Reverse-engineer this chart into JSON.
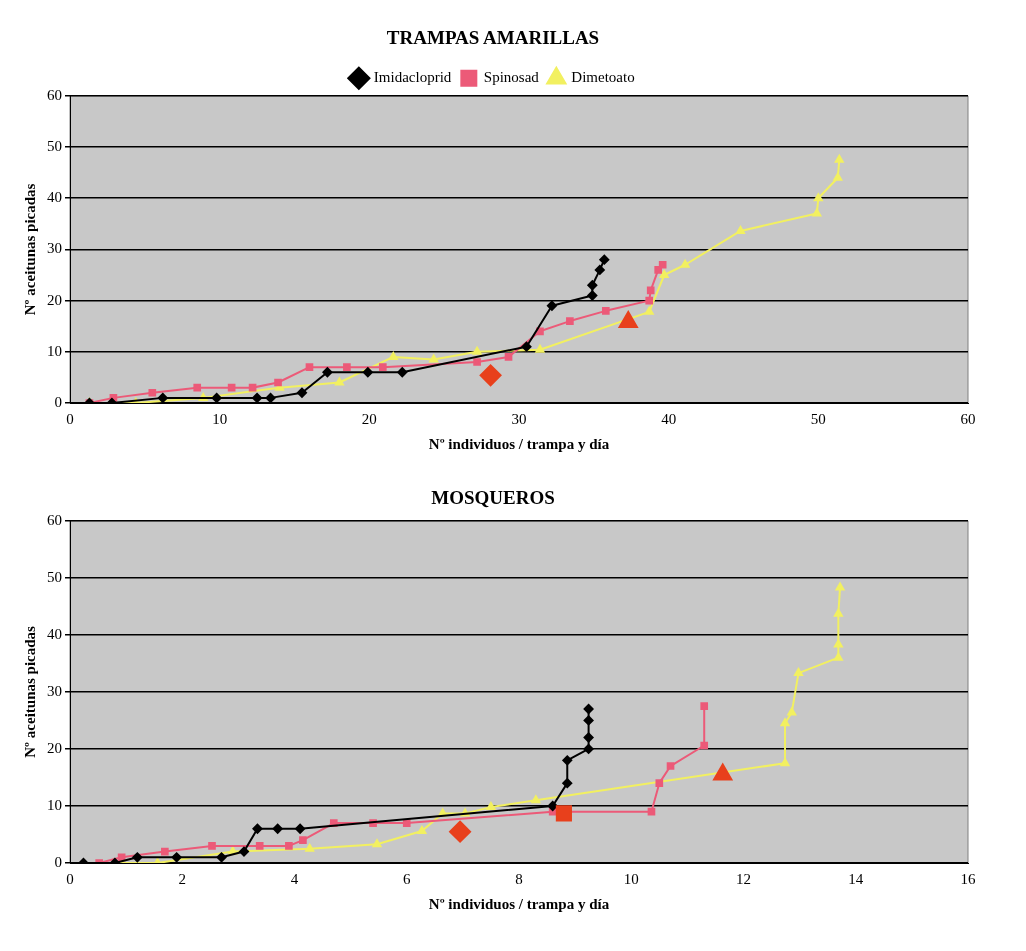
{
  "chart_data": [
    {
      "type": "line",
      "title": "TRAMPAS AMARILLAS",
      "xlabel": "Nº individuos / trampa y día",
      "ylabel": "Nº aceitunas picadas",
      "xlim": [
        0,
        60
      ],
      "xticks": [
        0,
        10,
        20,
        30,
        40,
        50,
        60
      ],
      "ylim": [
        0,
        60
      ],
      "yticks": [
        0,
        10,
        20,
        30,
        40,
        50,
        60
      ],
      "grid": "y",
      "legend": "top",
      "series": [
        {
          "name": "Imidacloprid",
          "color": "#000000",
          "marker": "diamond",
          "x": [
            1.3,
            2.8,
            6.2,
            9.8,
            12.5,
            13.4,
            15.5,
            17.2,
            19.9,
            22.2,
            30.5,
            32.2,
            34.9,
            34.9,
            35.4,
            35.7
          ],
          "values": [
            0,
            0,
            1,
            1,
            1,
            1,
            2,
            6,
            6,
            6,
            11,
            19,
            21,
            23,
            26,
            28
          ]
        },
        {
          "name": "Spinosad",
          "color": "#ec5a78",
          "marker": "square",
          "x": [
            1.3,
            2.9,
            5.5,
            8.5,
            10.8,
            12.2,
            13.9,
            16,
            18.5,
            20.9,
            27.2,
            29.3,
            31.4,
            33.4,
            35.8,
            38.7,
            38.8,
            39.3,
            39.6
          ],
          "values": [
            0,
            1,
            2,
            3,
            3,
            3,
            4,
            7,
            7,
            7,
            8,
            9,
            14,
            16,
            18,
            20,
            22,
            26,
            27
          ]
        },
        {
          "name": "Dimetoato",
          "color": "#f2f060",
          "marker": "triangle",
          "x": [
            1.3,
            4.4,
            8.9,
            14,
            18,
            21.6,
            24.3,
            27.2,
            31.4,
            38.7,
            39.7,
            41.1,
            44.8,
            49.9,
            50,
            51.3,
            51.4
          ],
          "values": [
            0,
            0,
            1,
            3,
            4,
            9,
            8.5,
            10,
            10.4,
            17.8,
            25,
            27,
            33.6,
            37,
            40,
            44,
            47.5
          ]
        },
        {
          "type": "scatter",
          "color": "#e8401c",
          "marker": "diamond",
          "x": [
            28.1
          ],
          "values": [
            5.4
          ]
        },
        {
          "type": "scatter",
          "color": "#e8401c",
          "marker": "triangle",
          "x": [
            37.3
          ],
          "values": [
            15.8
          ]
        }
      ]
    },
    {
      "type": "line",
      "title": "MOSQUEROS",
      "xlabel": "Nº individuos / trampa y día",
      "ylabel": "Nº aceitunas picadas",
      "xlim": [
        0,
        16
      ],
      "xticks": [
        0,
        2,
        4,
        6,
        8,
        10,
        12,
        14,
        16
      ],
      "ylim": [
        0,
        60
      ],
      "yticks": [
        0,
        10,
        20,
        30,
        40,
        50,
        60
      ],
      "grid": "y",
      "series": [
        {
          "color": "#000000",
          "marker": "diamond",
          "x": [
            0.24,
            0.8,
            1.2,
            1.9,
            2.7,
            3.1,
            3.34,
            3.7,
            4.1,
            8.6,
            8.86,
            8.86,
            9.24,
            9.24,
            9.24,
            9.24
          ],
          "values": [
            0,
            0,
            1,
            1,
            1,
            2,
            6,
            6,
            6,
            10,
            14,
            18,
            20,
            22,
            25,
            27
          ]
        },
        {
          "color": "#ec5a78",
          "marker": "square",
          "x": [
            0.52,
            0.92,
            1.69,
            2.53,
            3.38,
            3.9,
            4.15,
            4.7,
            5.4,
            6,
            8.6,
            10.36,
            10.5,
            10.7,
            11.3,
            11.3
          ],
          "values": [
            0,
            1,
            2,
            3,
            3,
            3,
            4,
            7,
            7,
            7,
            9,
            9,
            14,
            17,
            20.6,
            27.5
          ]
        },
        {
          "color": "#f2f060",
          "marker": "triangle",
          "x": [
            0.92,
            1.56,
            2.9,
            4.27,
            5.47,
            6.27,
            6.64,
            7.04,
            7.5,
            8.3,
            12.74,
            12.74,
            12.86,
            12.98,
            13.69,
            13.69,
            13.69,
            13.72
          ],
          "values": [
            0,
            0,
            2,
            2.5,
            3.3,
            5.6,
            8.7,
            8.7,
            9.8,
            11,
            17.5,
            24.5,
            26.4,
            33.3,
            36,
            38.3,
            43.7,
            48.3
          ]
        },
        {
          "type": "scatter",
          "color": "#e8401c",
          "marker": "diamond",
          "x": [
            6.95
          ],
          "values": [
            5.5
          ]
        },
        {
          "type": "scatter",
          "color": "#e8401c",
          "marker": "square",
          "x": [
            8.8
          ],
          "values": [
            8.7
          ]
        },
        {
          "type": "scatter",
          "color": "#e8401c",
          "marker": "triangle",
          "x": [
            11.63
          ],
          "values": [
            15.5
          ]
        }
      ]
    }
  ]
}
